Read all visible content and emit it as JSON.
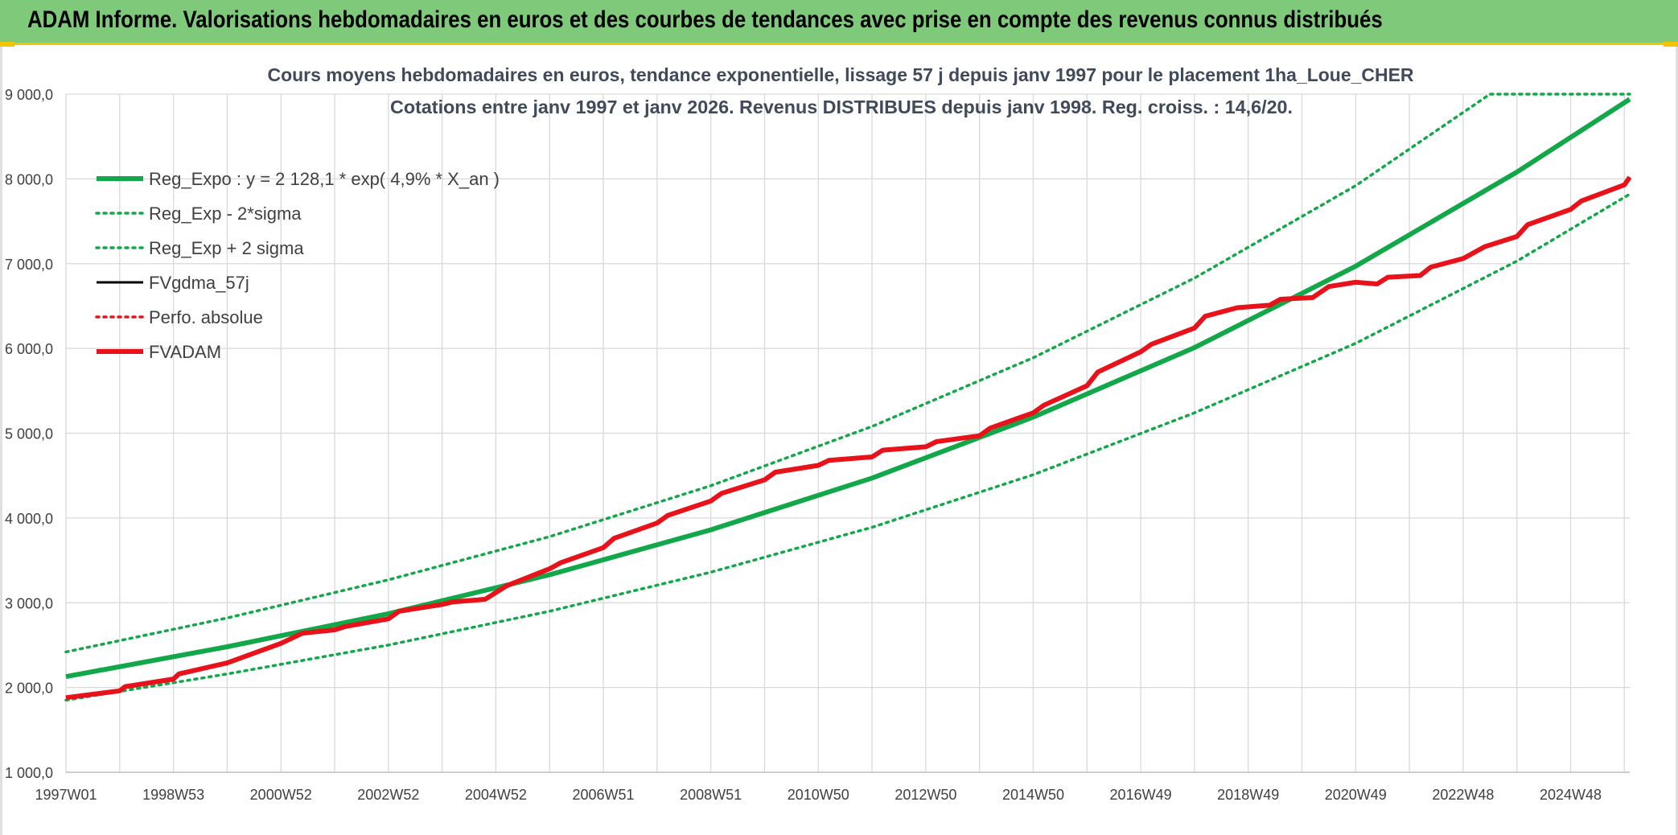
{
  "banner": {
    "title": "ADAM Informe. Valorisations hebdomadaires en euros et des courbes de tendances avec prise en compte des revenus connus distribués"
  },
  "colors": {
    "banner_bg": "#7fc97a",
    "banner_border": "#f5c400",
    "trend": "#12a84a",
    "adam": "#e8121a",
    "fvgdma": "#000000",
    "grid": "#d9d9d9",
    "title_text": "#404a5a"
  },
  "chart_data": {
    "type": "line",
    "title": "Cours moyens hebdomadaires en euros, tendance exponentielle, lissage 57 j depuis janv 1997 pour le placement 1ha_Loue_CHER",
    "subtitle": "Cotations entre janv 1997 et janv 2026. Revenus DISTRIBUES depuis janv 1998. Reg. croiss. : 14,6/20.",
    "xlabel": "",
    "ylabel": "",
    "ylim": [
      1000,
      9000
    ],
    "xlim": [
      1997.0,
      2026.1
    ],
    "grid": true,
    "legend_position": "top-left",
    "yticks": [
      {
        "v": 1000,
        "label": "1 000,0"
      },
      {
        "v": 2000,
        "label": "2 000,0"
      },
      {
        "v": 3000,
        "label": "3 000,0"
      },
      {
        "v": 4000,
        "label": "4 000,0"
      },
      {
        "v": 5000,
        "label": "5 000,0"
      },
      {
        "v": 6000,
        "label": "6 000,0"
      },
      {
        "v": 7000,
        "label": "7 000,0"
      },
      {
        "v": 8000,
        "label": "8 000,0"
      },
      {
        "v": 9000,
        "label": "9 000,0"
      }
    ],
    "xticks": [
      {
        "x": 1997.0,
        "label": "1997W01"
      },
      {
        "x": 1999.0,
        "label": "1998W53"
      },
      {
        "x": 2001.0,
        "label": "2000W52"
      },
      {
        "x": 2003.0,
        "label": "2002W52"
      },
      {
        "x": 2005.0,
        "label": "2004W52"
      },
      {
        "x": 2007.0,
        "label": "2006W51"
      },
      {
        "x": 2009.0,
        "label": "2008W51"
      },
      {
        "x": 2011.0,
        "label": "2010W50"
      },
      {
        "x": 2013.0,
        "label": "2012W50"
      },
      {
        "x": 2015.0,
        "label": "2014W50"
      },
      {
        "x": 2017.0,
        "label": "2016W49"
      },
      {
        "x": 2019.0,
        "label": "2018W49"
      },
      {
        "x": 2021.0,
        "label": "2020W49"
      },
      {
        "x": 2023.0,
        "label": "2022W48"
      },
      {
        "x": 2025.0,
        "label": "2024W48"
      }
    ],
    "series": [
      {
        "name": "Reg_Expo : y = 2 128,1 * exp( 4,9% *  X_an )",
        "style": "solid-thick",
        "color": "#12a84a",
        "points": [
          [
            1997.0,
            2128
          ],
          [
            2000.0,
            2480
          ],
          [
            2003.0,
            2870
          ],
          [
            2006.0,
            3330
          ],
          [
            2009.0,
            3860
          ],
          [
            2012.0,
            4470
          ],
          [
            2015.0,
            5190
          ],
          [
            2018.0,
            6010
          ],
          [
            2021.0,
            6970
          ],
          [
            2024.0,
            8080
          ],
          [
            2026.1,
            8940
          ]
        ]
      },
      {
        "name": "Reg_Exp - 2*sigma",
        "style": "dotted",
        "color": "#12a84a",
        "points": [
          [
            1997.0,
            1850
          ],
          [
            2000.0,
            2160
          ],
          [
            2003.0,
            2500
          ],
          [
            2006.0,
            2900
          ],
          [
            2009.0,
            3360
          ],
          [
            2012.0,
            3890
          ],
          [
            2015.0,
            4510
          ],
          [
            2018.0,
            5240
          ],
          [
            2021.0,
            6060
          ],
          [
            2024.0,
            7030
          ],
          [
            2026.1,
            7820
          ]
        ]
      },
      {
        "name": "Reg_Exp + 2 sigma",
        "style": "dotted",
        "color": "#12a84a",
        "points": [
          [
            1997.0,
            2420
          ],
          [
            2000.0,
            2820
          ],
          [
            2003.0,
            3270
          ],
          [
            2006.0,
            3780
          ],
          [
            2009.0,
            4380
          ],
          [
            2012.0,
            5080
          ],
          [
            2015.0,
            5890
          ],
          [
            2018.0,
            6830
          ],
          [
            2021.0,
            7920
          ],
          [
            2023.5,
            9000
          ],
          [
            2026.1,
            9000
          ]
        ]
      },
      {
        "name": "FVgdma_57j",
        "style": "solid",
        "color": "#000000",
        "points": [
          [
            1997.0,
            1880
          ],
          [
            1998.0,
            1960
          ],
          [
            1998.1,
            2010
          ],
          [
            1999.0,
            2100
          ],
          [
            1999.1,
            2160
          ],
          [
            2000.0,
            2290
          ],
          [
            2001.0,
            2520
          ],
          [
            2001.4,
            2640
          ],
          [
            2002.0,
            2680
          ],
          [
            2002.2,
            2720
          ],
          [
            2003.0,
            2810
          ],
          [
            2003.2,
            2900
          ],
          [
            2004.0,
            2980
          ],
          [
            2004.2,
            3010
          ],
          [
            2004.8,
            3040
          ],
          [
            2005.2,
            3200
          ],
          [
            2006.0,
            3400
          ],
          [
            2006.2,
            3470
          ],
          [
            2007.0,
            3650
          ],
          [
            2007.2,
            3760
          ],
          [
            2008.0,
            3940
          ],
          [
            2008.2,
            4030
          ],
          [
            2009.0,
            4200
          ],
          [
            2009.2,
            4290
          ],
          [
            2010.0,
            4450
          ],
          [
            2010.2,
            4540
          ],
          [
            2011.0,
            4620
          ],
          [
            2011.2,
            4680
          ],
          [
            2012.0,
            4720
          ],
          [
            2012.2,
            4800
          ],
          [
            2013.0,
            4840
          ],
          [
            2013.2,
            4900
          ],
          [
            2014.0,
            4970
          ],
          [
            2014.2,
            5060
          ],
          [
            2015.0,
            5240
          ],
          [
            2015.2,
            5330
          ],
          [
            2016.0,
            5560
          ],
          [
            2016.2,
            5720
          ],
          [
            2017.0,
            5960
          ],
          [
            2017.2,
            6050
          ],
          [
            2018.0,
            6240
          ],
          [
            2018.2,
            6380
          ],
          [
            2018.8,
            6480
          ],
          [
            2019.4,
            6510
          ],
          [
            2019.6,
            6580
          ],
          [
            2020.2,
            6600
          ],
          [
            2020.5,
            6730
          ],
          [
            2021.0,
            6780
          ],
          [
            2021.4,
            6760
          ],
          [
            2021.6,
            6840
          ],
          [
            2022.2,
            6860
          ],
          [
            2022.4,
            6960
          ],
          [
            2023.0,
            7060
          ],
          [
            2023.4,
            7200
          ],
          [
            2024.0,
            7320
          ],
          [
            2024.2,
            7460
          ],
          [
            2025.0,
            7640
          ],
          [
            2025.2,
            7740
          ],
          [
            2026.0,
            7930
          ],
          [
            2026.1,
            8020
          ]
        ]
      },
      {
        "name": "Perfo. absolue",
        "style": "dotted",
        "color": "#e8121a",
        "points": []
      },
      {
        "name": "FVADAM",
        "style": "solid-thick",
        "color": "#e8121a",
        "points": [
          [
            1997.0,
            1880
          ],
          [
            1998.0,
            1960
          ],
          [
            1998.1,
            2010
          ],
          [
            1999.0,
            2100
          ],
          [
            1999.1,
            2160
          ],
          [
            2000.0,
            2290
          ],
          [
            2001.0,
            2520
          ],
          [
            2001.4,
            2640
          ],
          [
            2002.0,
            2680
          ],
          [
            2002.2,
            2720
          ],
          [
            2003.0,
            2810
          ],
          [
            2003.2,
            2900
          ],
          [
            2004.0,
            2980
          ],
          [
            2004.2,
            3010
          ],
          [
            2004.8,
            3040
          ],
          [
            2005.2,
            3200
          ],
          [
            2006.0,
            3400
          ],
          [
            2006.2,
            3470
          ],
          [
            2007.0,
            3650
          ],
          [
            2007.2,
            3760
          ],
          [
            2008.0,
            3940
          ],
          [
            2008.2,
            4030
          ],
          [
            2009.0,
            4200
          ],
          [
            2009.2,
            4290
          ],
          [
            2010.0,
            4450
          ],
          [
            2010.2,
            4540
          ],
          [
            2011.0,
            4620
          ],
          [
            2011.2,
            4680
          ],
          [
            2012.0,
            4720
          ],
          [
            2012.2,
            4800
          ],
          [
            2013.0,
            4840
          ],
          [
            2013.2,
            4900
          ],
          [
            2014.0,
            4970
          ],
          [
            2014.2,
            5060
          ],
          [
            2015.0,
            5240
          ],
          [
            2015.2,
            5330
          ],
          [
            2016.0,
            5560
          ],
          [
            2016.2,
            5720
          ],
          [
            2017.0,
            5960
          ],
          [
            2017.2,
            6050
          ],
          [
            2018.0,
            6240
          ],
          [
            2018.2,
            6380
          ],
          [
            2018.8,
            6480
          ],
          [
            2019.4,
            6510
          ],
          [
            2019.6,
            6580
          ],
          [
            2020.2,
            6600
          ],
          [
            2020.5,
            6730
          ],
          [
            2021.0,
            6780
          ],
          [
            2021.4,
            6760
          ],
          [
            2021.6,
            6840
          ],
          [
            2022.2,
            6860
          ],
          [
            2022.4,
            6960
          ],
          [
            2023.0,
            7060
          ],
          [
            2023.4,
            7200
          ],
          [
            2024.0,
            7320
          ],
          [
            2024.2,
            7460
          ],
          [
            2025.0,
            7640
          ],
          [
            2025.2,
            7740
          ],
          [
            2026.0,
            7930
          ],
          [
            2026.1,
            8020
          ]
        ]
      }
    ]
  }
}
